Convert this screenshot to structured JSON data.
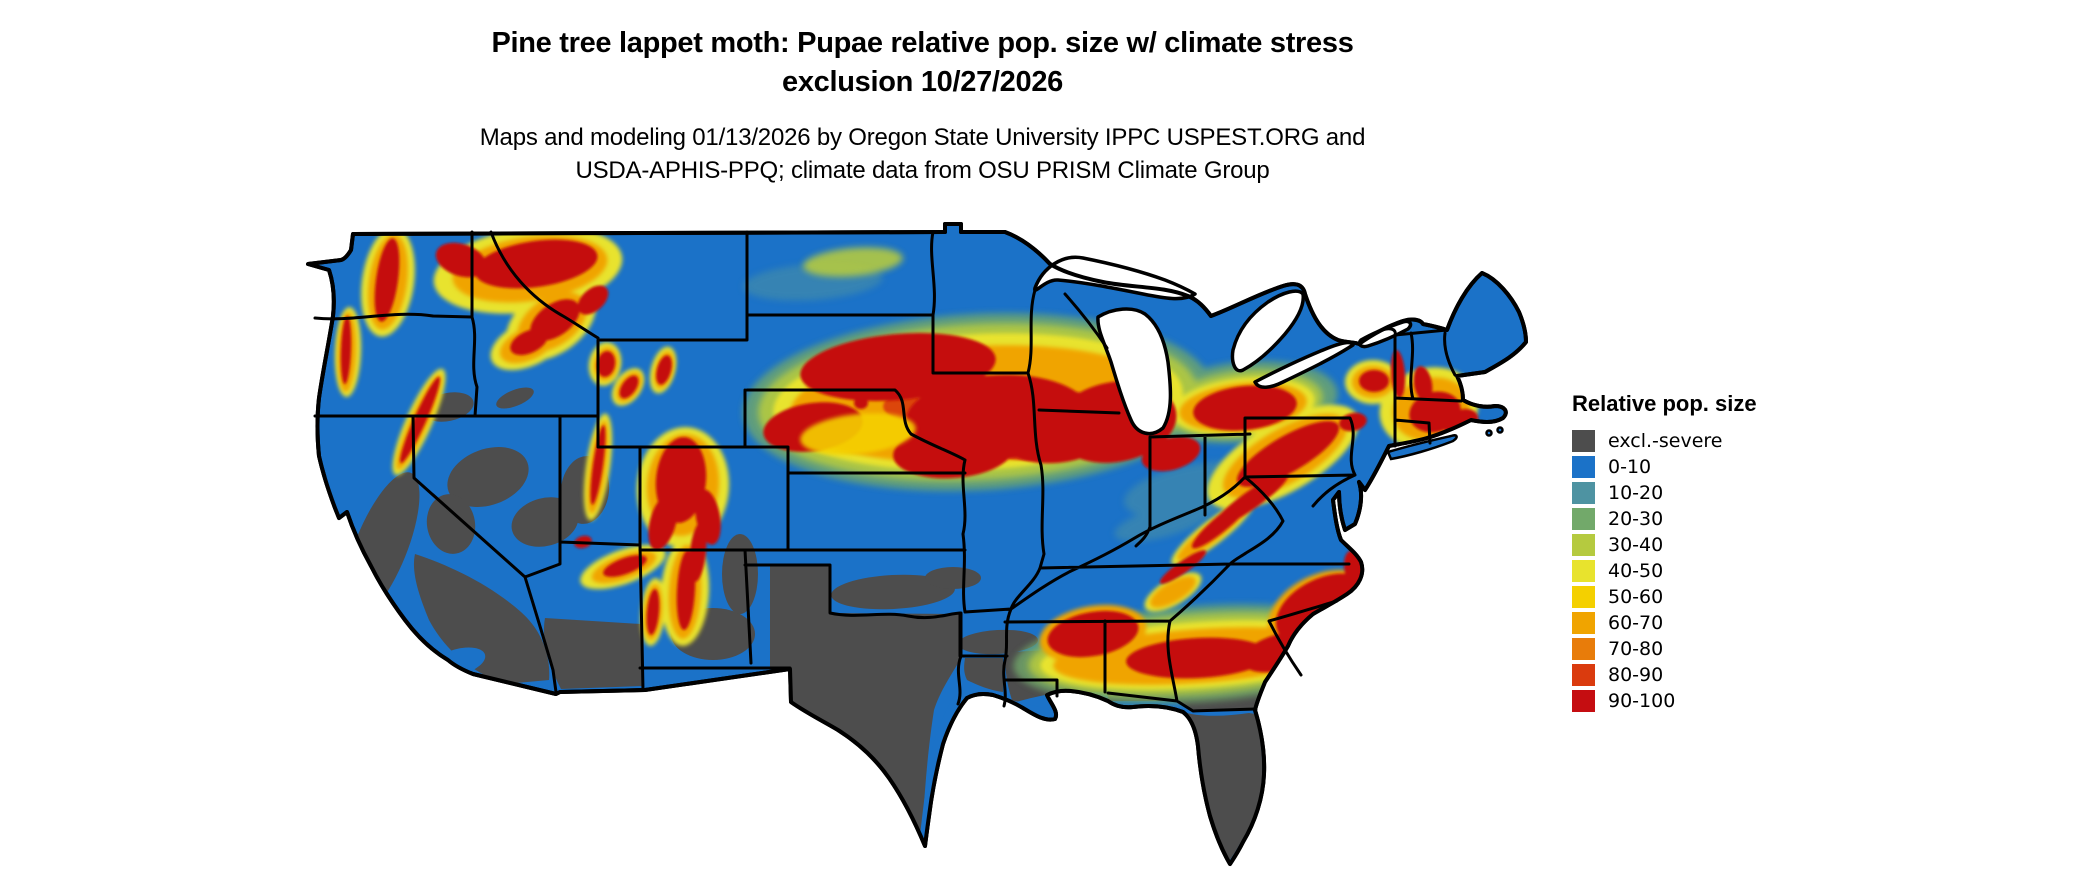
{
  "header": {
    "title_line1": "Pine tree lappet moth: Pupae relative pop. size w/ climate stress",
    "title_line2": "exclusion 10/27/2026",
    "subtitle_line1": "Maps and modeling 01/13/2026 by Oregon State University IPPC USPEST.ORG and",
    "subtitle_line2": "USDA-APHIS-PPQ; climate data from OSU PRISM Climate Group"
  },
  "legend": {
    "title": "Relative pop. size",
    "items": [
      {
        "label": "excl.-severe",
        "color": "#4d4d4d"
      },
      {
        "label": "0-10",
        "color": "#1b72c8"
      },
      {
        "label": "10-20",
        "color": "#4e93a2"
      },
      {
        "label": "20-30",
        "color": "#72a96a"
      },
      {
        "label": "30-40",
        "color": "#b5ca3f"
      },
      {
        "label": "40-50",
        "color": "#e8e32d"
      },
      {
        "label": "50-60",
        "color": "#f4d000"
      },
      {
        "label": "60-70",
        "color": "#f0a400"
      },
      {
        "label": "70-80",
        "color": "#e87c0a"
      },
      {
        "label": "80-90",
        "color": "#da3b0e"
      },
      {
        "label": "90-100",
        "color": "#c50d11"
      }
    ]
  },
  "map": {
    "palette": {
      "excluded": "#4d4d4d",
      "p0_10": "#1b72c8",
      "p10_20": "#4e93a2",
      "p20_30": "#72a96a",
      "p30_40": "#b5ca3f",
      "p40_50": "#e8e32d",
      "p50_60": "#f4d000",
      "p60_70": "#f0a400",
      "p70_80": "#e87c0a",
      "p80_90": "#da3b0e",
      "p90_100": "#c50d11",
      "border": "#000000",
      "water": "#ffffff"
    }
  }
}
